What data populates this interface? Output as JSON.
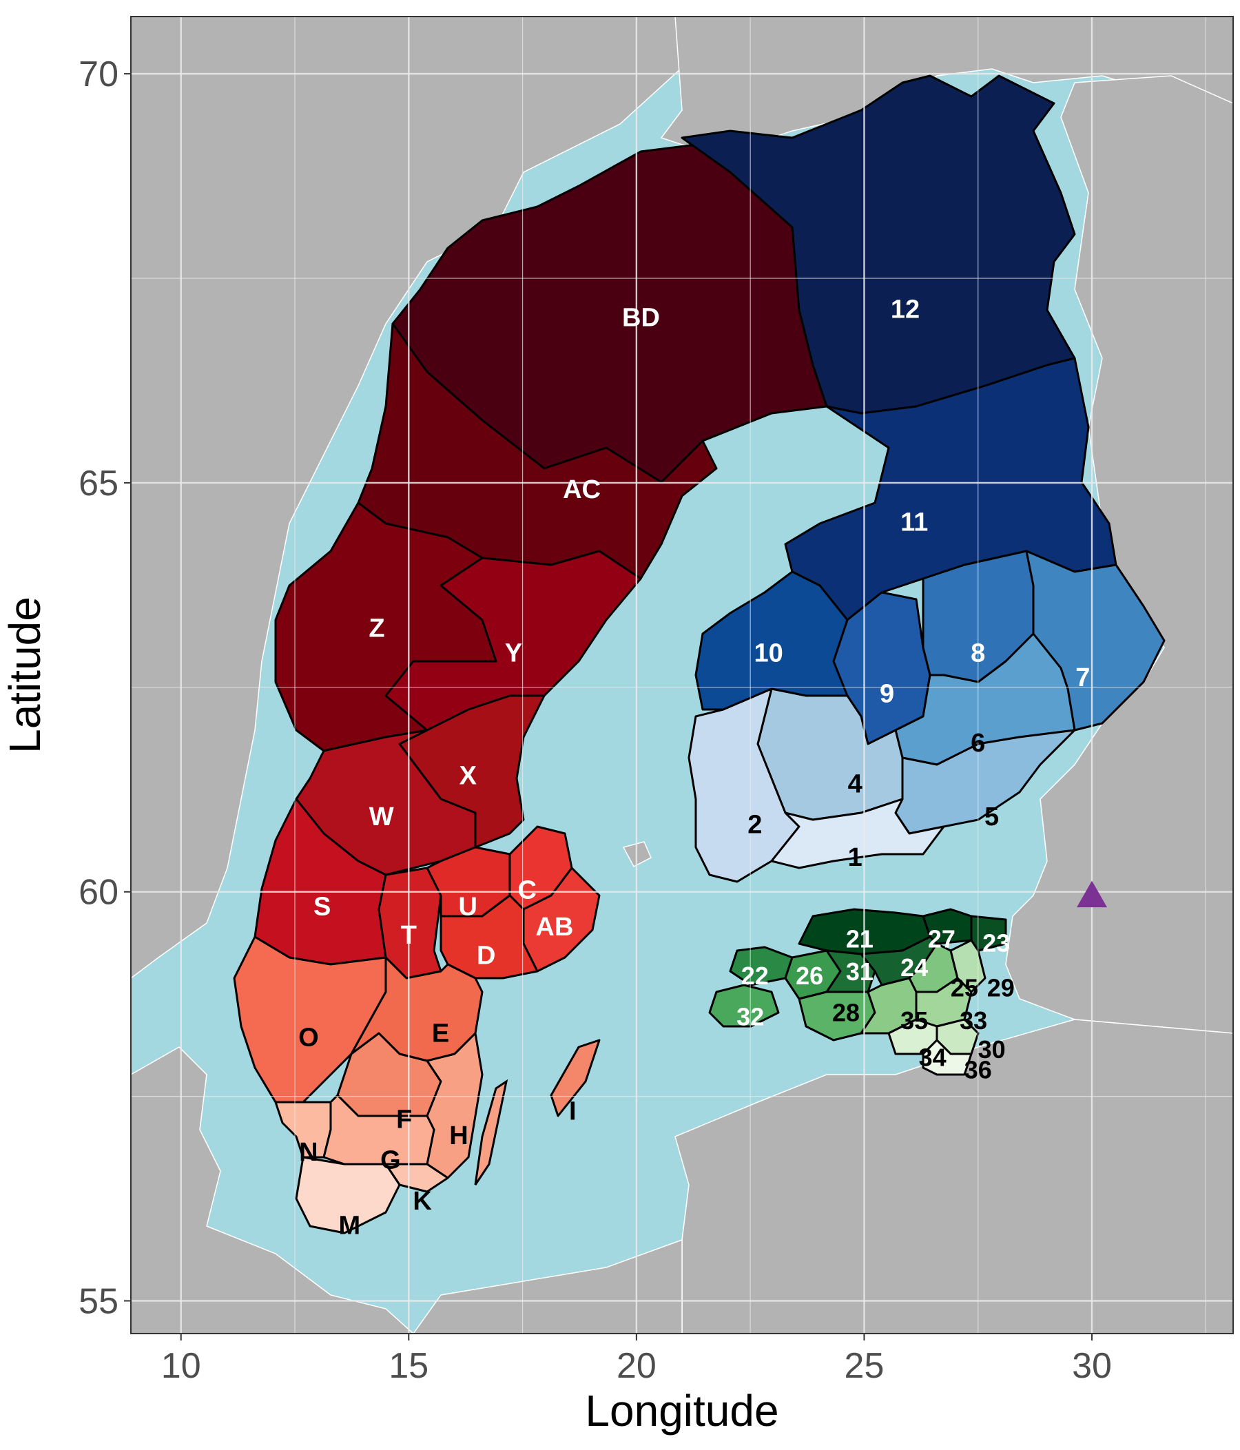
{
  "axes": {
    "xlabel": "Longitude",
    "ylabel": "Latitude",
    "x_ticks": [
      "10",
      "15",
      "20",
      "25",
      "30"
    ],
    "y_ticks": [
      "70",
      "65",
      "60",
      "55"
    ],
    "xlim": [
      8.9,
      33.1
    ],
    "ylim": [
      54.6,
      70.7
    ],
    "grid": true
  },
  "colors": {
    "sea": "#a4d8e0",
    "land": "#b3b3b3",
    "grid": "#ebebeb",
    "border": "#000000",
    "marker": "#7b3294"
  },
  "regions": {
    "sweden": [
      {
        "label": "BD",
        "lon": 20.1,
        "lat": 67.0,
        "color": "#4a0010",
        "text_color": "#ffffff"
      },
      {
        "label": "AC",
        "lon": 18.8,
        "lat": 64.9,
        "color": "#67000d",
        "text_color": "#ffffff"
      },
      {
        "label": "Z",
        "lon": 14.3,
        "lat": 63.2,
        "color": "#7d000f",
        "text_color": "#ffffff"
      },
      {
        "label": "Y",
        "lon": 17.3,
        "lat": 62.9,
        "color": "#930014",
        "text_color": "#ffffff"
      },
      {
        "label": "X",
        "lon": 16.3,
        "lat": 61.4,
        "color": "#a50f15",
        "text_color": "#ffffff"
      },
      {
        "label": "W",
        "lon": 14.4,
        "lat": 60.9,
        "color": "#b0101c",
        "text_color": "#ffffff"
      },
      {
        "label": "S",
        "lon": 13.1,
        "lat": 59.8,
        "color": "#c5111f",
        "text_color": "#ffffff"
      },
      {
        "label": "T",
        "lon": 15.0,
        "lat": 59.45,
        "color": "#d11e22",
        "text_color": "#ffffff"
      },
      {
        "label": "U",
        "lon": 16.3,
        "lat": 59.8,
        "color": "#e02a27",
        "text_color": "#ffffff"
      },
      {
        "label": "C",
        "lon": 17.6,
        "lat": 60.0,
        "color": "#ea3430",
        "text_color": "#ffffff"
      },
      {
        "label": "AB",
        "lon": 18.2,
        "lat": 59.55,
        "color": "#ea3a33",
        "text_color": "#ffffff"
      },
      {
        "label": "D",
        "lon": 16.7,
        "lat": 59.2,
        "color": "#e53329",
        "text_color": "#ffffff"
      },
      {
        "label": "O",
        "lon": 12.8,
        "lat": 58.2,
        "color": "#f46b52",
        "text_color": "#000000"
      },
      {
        "label": "E",
        "lon": 15.7,
        "lat": 58.25,
        "color": "#f26a4d",
        "text_color": "#000000"
      },
      {
        "label": "F",
        "lon": 14.9,
        "lat": 57.2,
        "color": "#f4866a",
        "text_color": "#000000"
      },
      {
        "label": "H",
        "lon": 16.1,
        "lat": 57.0,
        "color": "#f8a083",
        "text_color": "#000000"
      },
      {
        "label": "I",
        "lon": 18.6,
        "lat": 57.3,
        "color": "#f4866a",
        "text_color": "#000000"
      },
      {
        "label": "N",
        "lon": 12.8,
        "lat": 56.8,
        "color": "#fcbba1",
        "text_color": "#000000"
      },
      {
        "label": "G",
        "lon": 14.6,
        "lat": 56.7,
        "color": "#fbae93",
        "text_color": "#000000"
      },
      {
        "label": "K",
        "lon": 15.3,
        "lat": 56.2,
        "color": "#fcc4ae",
        "text_color": "#000000"
      },
      {
        "label": "M",
        "lon": 13.7,
        "lat": 55.9,
        "color": "#fdd9cc",
        "text_color": "#000000"
      }
    ],
    "finland": [
      {
        "label": "12",
        "lon": 25.9,
        "lat": 67.1,
        "color": "#0b1f52",
        "text_color": "#ffffff"
      },
      {
        "label": "11",
        "lon": 26.1,
        "lat": 64.5,
        "color": "#0c3076",
        "text_color": "#ffffff"
      },
      {
        "label": "10",
        "lon": 22.9,
        "lat": 62.9,
        "color": "#0c4a96",
        "text_color": "#ffffff"
      },
      {
        "label": "9",
        "lon": 25.5,
        "lat": 62.4,
        "color": "#1f5aa8",
        "text_color": "#ffffff"
      },
      {
        "label": "8",
        "lon": 27.5,
        "lat": 62.9,
        "color": "#2f72b5",
        "text_color": "#ffffff"
      },
      {
        "label": "7",
        "lon": 29.8,
        "lat": 62.6,
        "color": "#3f86c1",
        "text_color": "#ffffff"
      },
      {
        "label": "6",
        "lon": 27.5,
        "lat": 61.8,
        "color": "#5b9fcf",
        "text_color": "#000000"
      },
      {
        "label": "4",
        "lon": 24.8,
        "lat": 61.3,
        "color": "#a6c9e2",
        "text_color": "#000000"
      },
      {
        "label": "5",
        "lon": 27.8,
        "lat": 60.9,
        "color": "#8cbcdd",
        "text_color": "#000000"
      },
      {
        "label": "2",
        "lon": 22.6,
        "lat": 60.8,
        "color": "#c6dbef",
        "text_color": "#000000"
      },
      {
        "label": "1",
        "lon": 24.8,
        "lat": 60.4,
        "color": "#dbe8f6",
        "text_color": "#000000"
      }
    ],
    "estonia": [
      {
        "label": "21",
        "lon": 24.9,
        "lat": 59.4,
        "color": "#00441b",
        "text_color": "#ffffff"
      },
      {
        "label": "27",
        "lon": 26.7,
        "lat": 59.4,
        "color": "#00441b",
        "text_color": "#ffffff"
      },
      {
        "label": "23",
        "lon": 27.9,
        "lat": 59.35,
        "color": "#0a4f22",
        "text_color": "#ffffff"
      },
      {
        "label": "22",
        "lon": 22.6,
        "lat": 58.95,
        "color": "#2a8a45",
        "text_color": "#ffffff"
      },
      {
        "label": "26",
        "lon": 23.8,
        "lat": 58.95,
        "color": "#3a9a4e",
        "text_color": "#ffffff"
      },
      {
        "label": "31",
        "lon": 24.9,
        "lat": 59.0,
        "color": "#1c7035",
        "text_color": "#ffffff"
      },
      {
        "label": "24",
        "lon": 26.1,
        "lat": 59.05,
        "color": "#166130",
        "text_color": "#ffffff"
      },
      {
        "label": "25",
        "lon": 27.2,
        "lat": 58.8,
        "color": "#7fc57f",
        "text_color": "#000000"
      },
      {
        "label": "29",
        "lon": 28.0,
        "lat": 58.8,
        "color": "#b5dfb0",
        "text_color": "#000000"
      },
      {
        "label": "32",
        "lon": 22.5,
        "lat": 58.45,
        "color": "#4aa85c",
        "text_color": "#ffffff"
      },
      {
        "label": "28",
        "lon": 24.6,
        "lat": 58.5,
        "color": "#5bb368",
        "text_color": "#000000"
      },
      {
        "label": "35",
        "lon": 26.1,
        "lat": 58.4,
        "color": "#8bcb87",
        "text_color": "#000000"
      },
      {
        "label": "33",
        "lon": 27.4,
        "lat": 58.4,
        "color": "#a2d69a",
        "text_color": "#000000"
      },
      {
        "label": "30",
        "lon": 27.8,
        "lat": 58.05,
        "color": "#cbe9c3",
        "text_color": "#000000"
      },
      {
        "label": "34",
        "lon": 26.5,
        "lat": 57.95,
        "color": "#d9f0d3",
        "text_color": "#000000"
      },
      {
        "label": "36",
        "lon": 27.5,
        "lat": 57.8,
        "color": "#edf8e9",
        "text_color": "#000000"
      }
    ]
  },
  "marker": {
    "lon": 30.0,
    "lat": 59.95,
    "shape": "triangle",
    "color": "#7b3294"
  }
}
